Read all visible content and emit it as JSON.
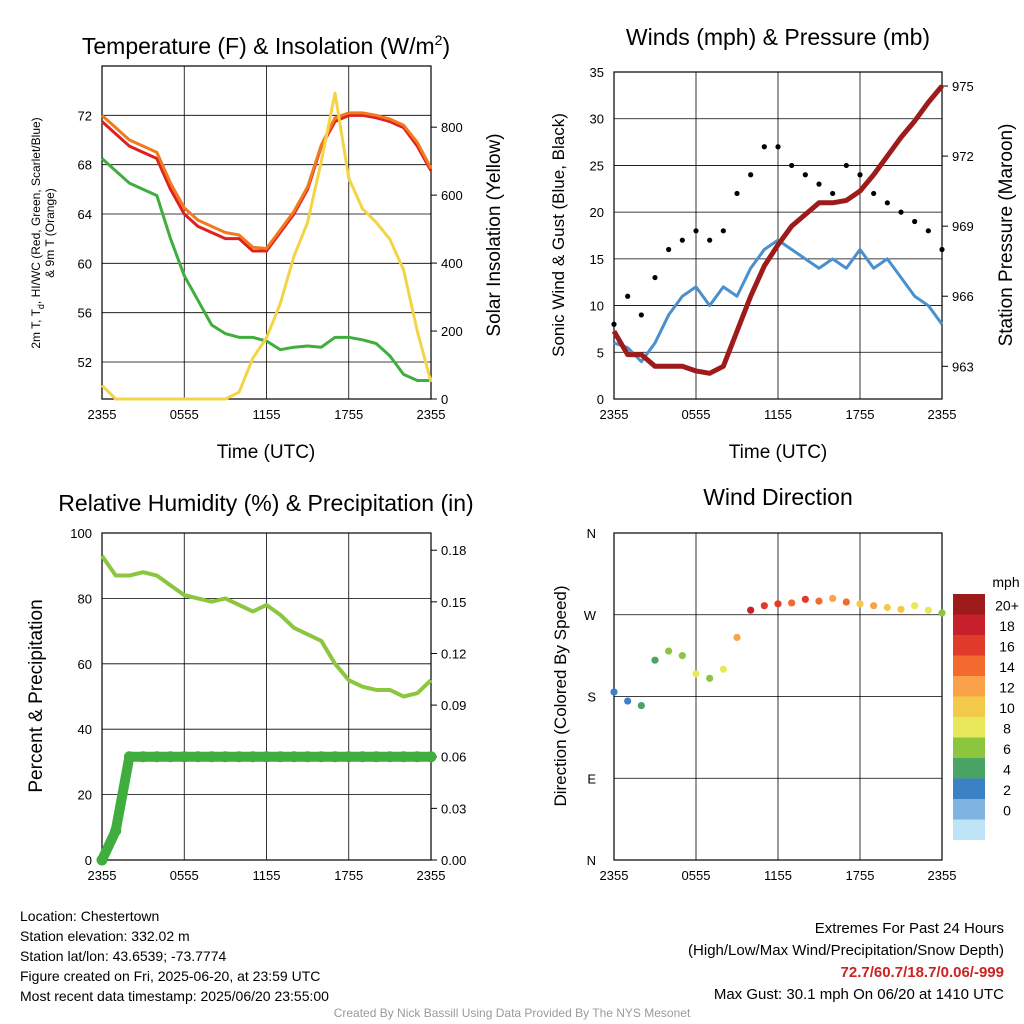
{
  "panels": {
    "temperature": {
      "title": "Temperature (F) & Insolation (W/m",
      "title_sup": "2",
      "title_close": ")",
      "ylabel_left_line1": "2m T, T",
      "ylabel_left_sub": "d",
      "ylabel_left_rest": ", HI/WC (Red, Green, Scarlet/Blue)",
      "ylabel_left_line2": "& 9m T (Orange)",
      "ylabel_right": "Solar Insolation (Yellow)",
      "xlabel": "Time (UTC)"
    },
    "winds": {
      "title": "Winds (mph) & Pressure (mb)",
      "ylabel_left": "Sonic Wind & Gust (Blue, Black)",
      "ylabel_right": "Station Pressure (Maroon)",
      "xlabel": "Time (UTC)"
    },
    "humidity": {
      "title": "Relative Humidity (%) & Precipitation (in)",
      "ylabel_left": "Percent & Precipitation"
    },
    "direction": {
      "title": "Wind Direction",
      "ylabel_left": "Direction (Colored By Speed)",
      "legend_title": "mph",
      "legend_labels": [
        "20+",
        "18",
        "16",
        "14",
        "12",
        "10",
        "8",
        "6",
        "4",
        "2",
        "0"
      ],
      "legend_colors": [
        "#9e1b1b",
        "#c8202a",
        "#e03a2a",
        "#f26a2e",
        "#f9a24a",
        "#f3c94a",
        "#e8e85a",
        "#8cc63f",
        "#4aa564",
        "#3b82c4",
        "#7fb3e0",
        "#bfe3f7"
      ]
    }
  },
  "chart_data": [
    {
      "type": "line",
      "title": "Temperature (F) & Insolation (W/m2)",
      "xlabel": "Time (UTC)",
      "x_ticks": [
        "2355",
        "0555",
        "1155",
        "1755",
        "2355"
      ],
      "ylim_left": [
        49,
        76
      ],
      "y_ticks_left": [
        52,
        56,
        60,
        64,
        68,
        72
      ],
      "ylim_right": [
        0,
        980
      ],
      "y_ticks_right": [
        0,
        200,
        400,
        600,
        800
      ],
      "x_hours": [
        0,
        1,
        2,
        3,
        4,
        5,
        6,
        7,
        8,
        9,
        10,
        11,
        12,
        13,
        14,
        15,
        16,
        17,
        18,
        19,
        20,
        21,
        22,
        23,
        24
      ],
      "series": [
        {
          "name": "2m T",
          "color": "#e02020",
          "axis": "left",
          "values": [
            71.5,
            70.5,
            69.5,
            69,
            68.5,
            66,
            64,
            63,
            62.5,
            62,
            62,
            61,
            61,
            62.5,
            64,
            66,
            69.5,
            71.5,
            72,
            72,
            71.8,
            71.5,
            71,
            69.5,
            67.5
          ]
        },
        {
          "name": "9m T",
          "color": "#f07a1e",
          "axis": "left",
          "values": [
            72,
            71,
            70,
            69.5,
            69,
            66.5,
            64.5,
            63.5,
            63,
            62.5,
            62.3,
            61.3,
            61.2,
            62.7,
            64.2,
            66.2,
            69.6,
            71.8,
            72.2,
            72.2,
            72,
            71.7,
            71.2,
            69.8,
            67.7
          ]
        },
        {
          "name": "Td",
          "color": "#3fae3f",
          "axis": "left",
          "values": [
            68.5,
            67.5,
            66.5,
            66,
            65.5,
            62,
            59,
            57,
            55,
            54.3,
            54,
            54,
            53.7,
            53,
            53.2,
            53.3,
            53.2,
            54,
            54,
            53.8,
            53.5,
            52.5,
            51,
            50.5,
            50.5
          ]
        },
        {
          "name": "Solar Insolation",
          "color": "#f4d447",
          "axis": "right",
          "values": [
            40,
            0,
            0,
            0,
            0,
            0,
            0,
            0,
            0,
            0,
            20,
            120,
            180,
            280,
            420,
            520,
            700,
            900,
            650,
            560,
            520,
            470,
            380,
            200,
            50
          ]
        }
      ]
    },
    {
      "type": "line",
      "title": "Winds (mph) & Pressure (mb)",
      "xlabel": "Time (UTC)",
      "x_ticks": [
        "2355",
        "0555",
        "1155",
        "1755",
        "2355"
      ],
      "ylim_left": [
        0,
        35
      ],
      "y_ticks_left": [
        0,
        5,
        10,
        15,
        20,
        25,
        30,
        35
      ],
      "ylim_right": [
        961.6,
        975.6
      ],
      "y_ticks_right": [
        963,
        966,
        969,
        972,
        975
      ],
      "x_hours": [
        0,
        1,
        2,
        3,
        4,
        5,
        6,
        7,
        8,
        9,
        10,
        11,
        12,
        13,
        14,
        15,
        16,
        17,
        18,
        19,
        20,
        21,
        22,
        23,
        24
      ],
      "series": [
        {
          "name": "Sonic Wind",
          "color": "#4a90cc",
          "axis": "left",
          "values": [
            6,
            5.5,
            4,
            6,
            9,
            11,
            12,
            10,
            12,
            11,
            14,
            16,
            17,
            16,
            15,
            14,
            15,
            14,
            16,
            14,
            15,
            13,
            11,
            10,
            8
          ]
        },
        {
          "name": "Gust",
          "color": "#000000",
          "axis": "left",
          "values": [
            8,
            11,
            9,
            13,
            16,
            17,
            18,
            17,
            18,
            22,
            24,
            27,
            27,
            25,
            24,
            23,
            22,
            25,
            24,
            22,
            21,
            20,
            19,
            18,
            16
          ]
        },
        {
          "name": "Station Pressure",
          "color": "#9e1b1b",
          "axis": "right",
          "values": [
            964.5,
            963.5,
            963.5,
            963,
            963,
            963,
            962.8,
            962.7,
            963.0,
            964.5,
            966.0,
            967.3,
            968.2,
            969.0,
            969.5,
            970.0,
            970.0,
            970.1,
            970.5,
            971.2,
            972.0,
            972.8,
            973.5,
            974.3,
            975.0
          ]
        }
      ]
    },
    {
      "type": "line",
      "title": "Relative Humidity (%) & Precipitation (in)",
      "x_ticks": [
        "2355",
        "0555",
        "1155",
        "1755",
        "2355"
      ],
      "ylim_left": [
        0,
        100
      ],
      "y_ticks_left": [
        0,
        20,
        40,
        60,
        80,
        100
      ],
      "ylim_right": [
        0,
        0.19
      ],
      "y_ticks_right": [
        "0.00",
        "0.03",
        "0.06",
        "0.09",
        "0.12",
        "0.15",
        "0.18"
      ],
      "x_hours": [
        0,
        1,
        2,
        3,
        4,
        5,
        6,
        7,
        8,
        9,
        10,
        11,
        12,
        13,
        14,
        15,
        16,
        17,
        18,
        19,
        20,
        21,
        22,
        23,
        24
      ],
      "series": [
        {
          "name": "Relative Humidity",
          "color": "#8cc63f",
          "axis": "left",
          "values": [
            93,
            87,
            87,
            88,
            87,
            84,
            81,
            80,
            79,
            80,
            78,
            76,
            78,
            75,
            71,
            69,
            67,
            60,
            55,
            53,
            52,
            52,
            50,
            51,
            55
          ]
        },
        {
          "name": "Precipitation",
          "color": "#3fae3f",
          "axis": "right",
          "values": [
            0.0,
            0.017,
            0.06,
            0.06,
            0.06,
            0.06,
            0.06,
            0.06,
            0.06,
            0.06,
            0.06,
            0.06,
            0.06,
            0.06,
            0.06,
            0.06,
            0.06,
            0.06,
            0.06,
            0.06,
            0.06,
            0.06,
            0.06,
            0.06,
            0.06
          ]
        }
      ]
    },
    {
      "type": "scatter",
      "title": "Wind Direction",
      "x_ticks": [
        "2355",
        "0555",
        "1155",
        "1755",
        "2355"
      ],
      "y_ticks": [
        "N",
        "E",
        "S",
        "W",
        "N"
      ],
      "ylim": [
        0,
        360
      ],
      "x_hours": [
        0,
        1,
        2,
        3,
        4,
        5,
        6,
        7,
        8,
        9,
        10,
        11,
        12,
        13,
        14,
        15,
        16,
        17,
        18,
        19,
        20,
        21,
        22,
        23,
        24
      ],
      "series": [
        {
          "name": "Direction",
          "axis": "left",
          "values": [
            185,
            175,
            170,
            220,
            230,
            225,
            205,
            200,
            210,
            245,
            275,
            280,
            282,
            283,
            287,
            285,
            288,
            284,
            282,
            280,
            278,
            276,
            280,
            275,
            272
          ]
        },
        {
          "name": "Speed",
          "axis": "none",
          "values": [
            3,
            4,
            5,
            6,
            7,
            8,
            9,
            8,
            10,
            14,
            19,
            18,
            17,
            15,
            17,
            16,
            14,
            15,
            12,
            13,
            12,
            11,
            10,
            9,
            8
          ]
        }
      ]
    }
  ],
  "info": {
    "location": "Location: Chestertown",
    "elevation": "Station elevation: 332.02 m",
    "latlon": "Station lat/lon: 43.6539; -73.7774",
    "created": "Figure created on Fri, 2025-06-20, at 23:59 UTC",
    "recent": "Most recent data timestamp: 2025/06/20 23:55:00"
  },
  "extremes": {
    "title": "Extremes For Past 24 Hours",
    "subtitle": "(High/Low/Max Wind/Precipitation/Snow Depth)",
    "values": "72.7/60.7/18.7/0.06/-999",
    "max_gust": "Max Gust: 30.1 mph On 06/20 at 1410 UTC"
  },
  "credit": "Created By Nick Bassill Using Data Provided By The NYS Mesonet"
}
